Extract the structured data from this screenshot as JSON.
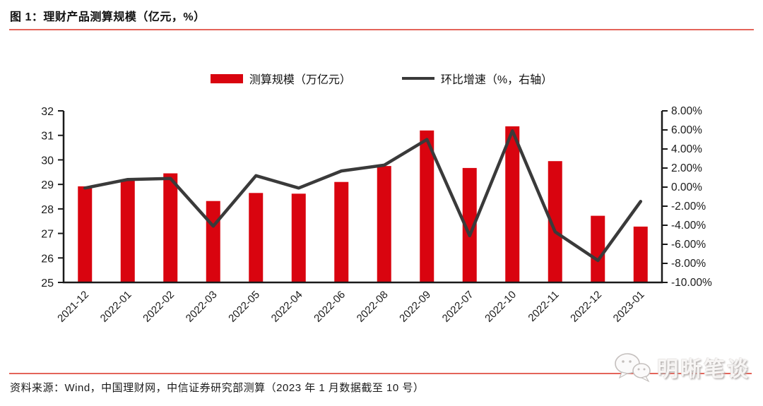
{
  "figure": {
    "title": "图 1：理财产品测算规模（亿元，%）",
    "source": "资料来源：Wind，中国理财网，中信证券研究部测算（2023 年 1 月数据截至 10 号）",
    "watermark": "明晰笔谈"
  },
  "colors": {
    "bar": "#d9040f",
    "line": "#3a3a3a",
    "axis": "#1a1a1a",
    "rule": "#e4645a"
  },
  "chart_data": {
    "type": "bar",
    "subtype": "bar-line-combo",
    "title": "理财产品测算规模（亿元，%）",
    "categories": [
      "2021-12",
      "2022-01",
      "2022-02",
      "2022-03",
      "2022-05",
      "2022-04",
      "2022-06",
      "2022-08",
      "2022-09",
      "2022-07",
      "2022-10",
      "2022-11",
      "2022-12",
      "2023-01"
    ],
    "series": [
      {
        "name": "测算规模（万亿元）",
        "type": "bar",
        "axis": "left",
        "color": "#d9040f",
        "values": [
          28.92,
          29.15,
          29.45,
          28.32,
          28.65,
          28.62,
          29.1,
          29.75,
          31.2,
          29.67,
          31.37,
          29.95,
          27.72,
          27.28
        ]
      },
      {
        "name": "环比增速（%，右轴）",
        "type": "line",
        "axis": "right",
        "color": "#3a3a3a",
        "values": [
          -0.1,
          0.8,
          0.9,
          -4.1,
          1.2,
          -0.1,
          1.7,
          2.3,
          5.0,
          -5.1,
          5.9,
          -4.7,
          -7.7,
          -1.5
        ]
      }
    ],
    "left_axis": {
      "min": 25,
      "max": 32,
      "step": 1
    },
    "right_axis": {
      "min": -10,
      "max": 8,
      "step": 2,
      "suffix": "%",
      "decimals": 2
    },
    "grid": false,
    "legend_position": "top"
  }
}
